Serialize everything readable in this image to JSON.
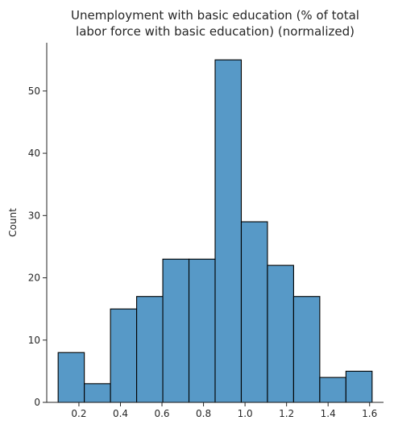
{
  "chart_data": {
    "type": "bar",
    "subtype": "histogram",
    "title": "Unemployment with basic education (% of total\nlabor force with basic education) (normalized)",
    "xlabel": "",
    "ylabel": "Count",
    "bins": [
      {
        "left": 0.1,
        "right": 0.226,
        "count": 8
      },
      {
        "left": 0.226,
        "right": 0.352,
        "count": 3
      },
      {
        "left": 0.352,
        "right": 0.478,
        "count": 15
      },
      {
        "left": 0.478,
        "right": 0.604,
        "count": 17
      },
      {
        "left": 0.604,
        "right": 0.73,
        "count": 23
      },
      {
        "left": 0.73,
        "right": 0.856,
        "count": 23
      },
      {
        "left": 0.856,
        "right": 0.982,
        "count": 55
      },
      {
        "left": 0.982,
        "right": 1.108,
        "count": 29
      },
      {
        "left": 1.108,
        "right": 1.234,
        "count": 22
      },
      {
        "left": 1.234,
        "right": 1.36,
        "count": 17
      },
      {
        "left": 1.36,
        "right": 1.486,
        "count": 4
      },
      {
        "left": 1.486,
        "right": 1.612,
        "count": 5
      }
    ],
    "xlim": [
      0.045,
      1.667
    ],
    "ylim": [
      0,
      57.75
    ],
    "xticks": [
      0.2,
      0.4,
      0.6,
      0.8,
      1.0,
      1.2,
      1.4,
      1.6
    ],
    "xtick_labels": [
      "0.2",
      "0.4",
      "0.6",
      "0.8",
      "1.0",
      "1.2",
      "1.4",
      "1.6"
    ],
    "yticks": [
      0,
      10,
      20,
      30,
      40,
      50
    ],
    "ytick_labels": [
      "0",
      "10",
      "20",
      "30",
      "40",
      "50"
    ],
    "grid": false,
    "bar_color": "#5799c7",
    "edge_color": "#000000"
  }
}
